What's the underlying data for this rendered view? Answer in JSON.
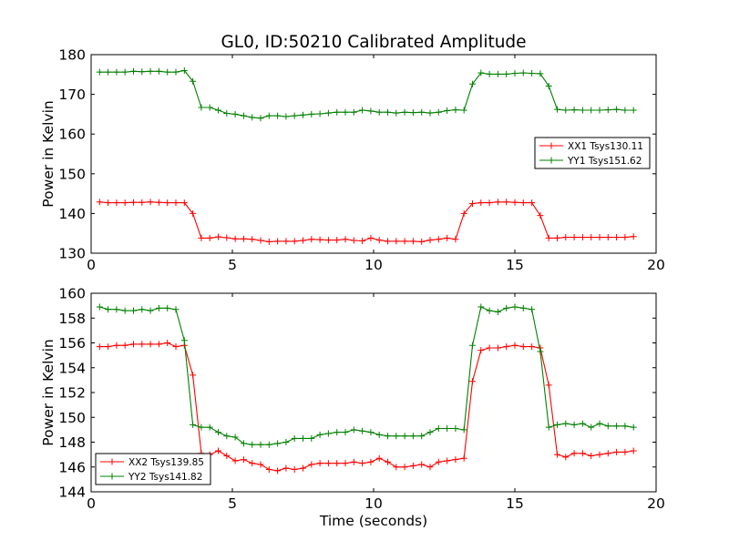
{
  "figure_title": "GL0, ID:50210 Calibrated Amplitude",
  "chart_data": [
    {
      "type": "line",
      "title": "GL0, ID:50210 Calibrated Amplitude",
      "xlabel": "",
      "ylabel": "Power in Kelvin",
      "xlim": [
        0,
        20
      ],
      "ylim": [
        130,
        180
      ],
      "x_ticks": [
        "0",
        "5",
        "10",
        "15",
        "20"
      ],
      "y_ticks": [
        "130",
        "140",
        "150",
        "160",
        "170",
        "180"
      ],
      "grid": false,
      "legend_position": "right",
      "x": [
        0.3,
        0.6,
        0.9,
        1.2,
        1.5,
        1.8,
        2.1,
        2.4,
        2.7,
        3.0,
        3.3,
        3.6,
        3.9,
        4.2,
        4.5,
        4.8,
        5.1,
        5.4,
        5.7,
        6.0,
        6.3,
        6.6,
        6.9,
        7.2,
        7.5,
        7.8,
        8.1,
        8.4,
        8.7,
        9.0,
        9.3,
        9.6,
        9.9,
        10.2,
        10.5,
        10.8,
        11.1,
        11.4,
        11.7,
        12.0,
        12.3,
        12.6,
        12.9,
        13.2,
        13.5,
        13.8,
        14.1,
        14.4,
        14.7,
        15.0,
        15.3,
        15.6,
        15.9,
        16.2,
        16.5,
        16.8,
        17.1,
        17.4,
        17.7,
        18.0,
        18.3,
        18.6,
        18.9,
        19.2
      ],
      "series": [
        {
          "name": "XX1 Tsys130.11",
          "color": "#ff0000",
          "values": [
            142.9,
            142.7,
            142.7,
            142.7,
            142.8,
            142.8,
            142.9,
            142.8,
            142.7,
            142.7,
            142.7,
            140.0,
            133.8,
            133.8,
            134.1,
            133.9,
            133.6,
            133.6,
            133.5,
            133.2,
            132.9,
            133.0,
            133.0,
            133.0,
            133.2,
            133.5,
            133.4,
            133.3,
            133.3,
            133.5,
            133.2,
            133.1,
            133.8,
            133.3,
            133.0,
            133.0,
            133.0,
            133.0,
            132.9,
            133.3,
            133.5,
            133.8,
            133.5,
            140.0,
            142.5,
            142.7,
            142.7,
            142.9,
            142.9,
            142.8,
            142.7,
            142.7,
            139.5,
            133.8,
            133.8,
            134.0,
            134.0,
            134.0,
            134.0,
            134.0,
            134.0,
            134.0,
            134.0,
            134.2
          ]
        },
        {
          "name": "YY1 Tsys151.62",
          "color": "#008000",
          "values": [
            175.6,
            175.6,
            175.6,
            175.6,
            175.8,
            175.7,
            175.8,
            175.8,
            175.6,
            175.6,
            176.0,
            173.3,
            166.7,
            166.7,
            166.0,
            165.2,
            165.0,
            164.6,
            164.2,
            164.0,
            164.6,
            164.6,
            164.4,
            164.6,
            164.8,
            165.0,
            165.1,
            165.3,
            165.5,
            165.5,
            165.5,
            166.0,
            165.8,
            165.5,
            165.5,
            165.3,
            165.5,
            165.4,
            165.5,
            165.3,
            165.5,
            165.9,
            166.1,
            166.0,
            172.6,
            175.4,
            175.1,
            175.1,
            175.1,
            175.3,
            175.4,
            175.3,
            175.2,
            172.1,
            166.2,
            166.0,
            166.1,
            166.0,
            166.0,
            166.0,
            166.1,
            166.2,
            166.0,
            166.0
          ]
        }
      ]
    },
    {
      "type": "line",
      "title": "",
      "xlabel": "Time (seconds)",
      "ylabel": "Power in Kelvin",
      "xlim": [
        0,
        20
      ],
      "ylim": [
        144,
        160
      ],
      "x_ticks": [
        "0",
        "5",
        "10",
        "15",
        "20"
      ],
      "y_ticks": [
        "144",
        "146",
        "148",
        "150",
        "152",
        "154",
        "156",
        "158",
        "160"
      ],
      "grid": false,
      "legend_position": "bottom-left",
      "x": [
        0.3,
        0.6,
        0.9,
        1.2,
        1.5,
        1.8,
        2.1,
        2.4,
        2.7,
        3.0,
        3.3,
        3.6,
        3.9,
        4.2,
        4.5,
        4.8,
        5.1,
        5.4,
        5.7,
        6.0,
        6.3,
        6.6,
        6.9,
        7.2,
        7.5,
        7.8,
        8.1,
        8.4,
        8.7,
        9.0,
        9.3,
        9.6,
        9.9,
        10.2,
        10.5,
        10.8,
        11.1,
        11.4,
        11.7,
        12.0,
        12.3,
        12.6,
        12.9,
        13.2,
        13.5,
        13.8,
        14.1,
        14.4,
        14.7,
        15.0,
        15.3,
        15.6,
        15.9,
        16.2,
        16.5,
        16.8,
        17.1,
        17.4,
        17.7,
        18.0,
        18.3,
        18.6,
        18.9,
        19.2
      ],
      "series": [
        {
          "name": "XX2 Tsys139.85",
          "color": "#ff0000",
          "values": [
            155.7,
            155.7,
            155.8,
            155.8,
            155.9,
            155.9,
            155.9,
            155.9,
            156.0,
            155.7,
            155.8,
            153.4,
            147.1,
            147.0,
            147.3,
            146.9,
            146.5,
            146.6,
            146.3,
            146.2,
            145.8,
            145.7,
            145.9,
            145.8,
            145.9,
            146.2,
            146.3,
            146.3,
            146.3,
            146.3,
            146.4,
            146.3,
            146.4,
            146.7,
            146.4,
            146.0,
            146.0,
            146.1,
            146.2,
            146.0,
            146.4,
            146.5,
            146.6,
            146.7,
            152.9,
            155.4,
            155.6,
            155.6,
            155.7,
            155.8,
            155.7,
            155.7,
            155.6,
            152.6,
            147.0,
            146.8,
            147.1,
            147.1,
            146.9,
            147.0,
            147.1,
            147.2,
            147.2,
            147.3
          ]
        },
        {
          "name": "YY2 Tsys141.82",
          "color": "#008000",
          "values": [
            158.9,
            158.7,
            158.7,
            158.6,
            158.6,
            158.7,
            158.6,
            158.8,
            158.8,
            158.7,
            156.2,
            149.4,
            149.2,
            149.2,
            148.8,
            148.5,
            148.4,
            147.9,
            147.8,
            147.8,
            147.8,
            147.9,
            148.0,
            148.3,
            148.3,
            148.3,
            148.6,
            148.7,
            148.8,
            148.8,
            149.0,
            148.9,
            148.8,
            148.6,
            148.5,
            148.5,
            148.5,
            148.5,
            148.5,
            148.8,
            149.1,
            149.1,
            149.1,
            149.0,
            155.8,
            158.9,
            158.6,
            158.5,
            158.8,
            158.9,
            158.8,
            158.7,
            155.3,
            149.2,
            149.4,
            149.5,
            149.4,
            149.5,
            149.2,
            149.5,
            149.3,
            149.3,
            149.3,
            149.2
          ]
        }
      ]
    }
  ]
}
